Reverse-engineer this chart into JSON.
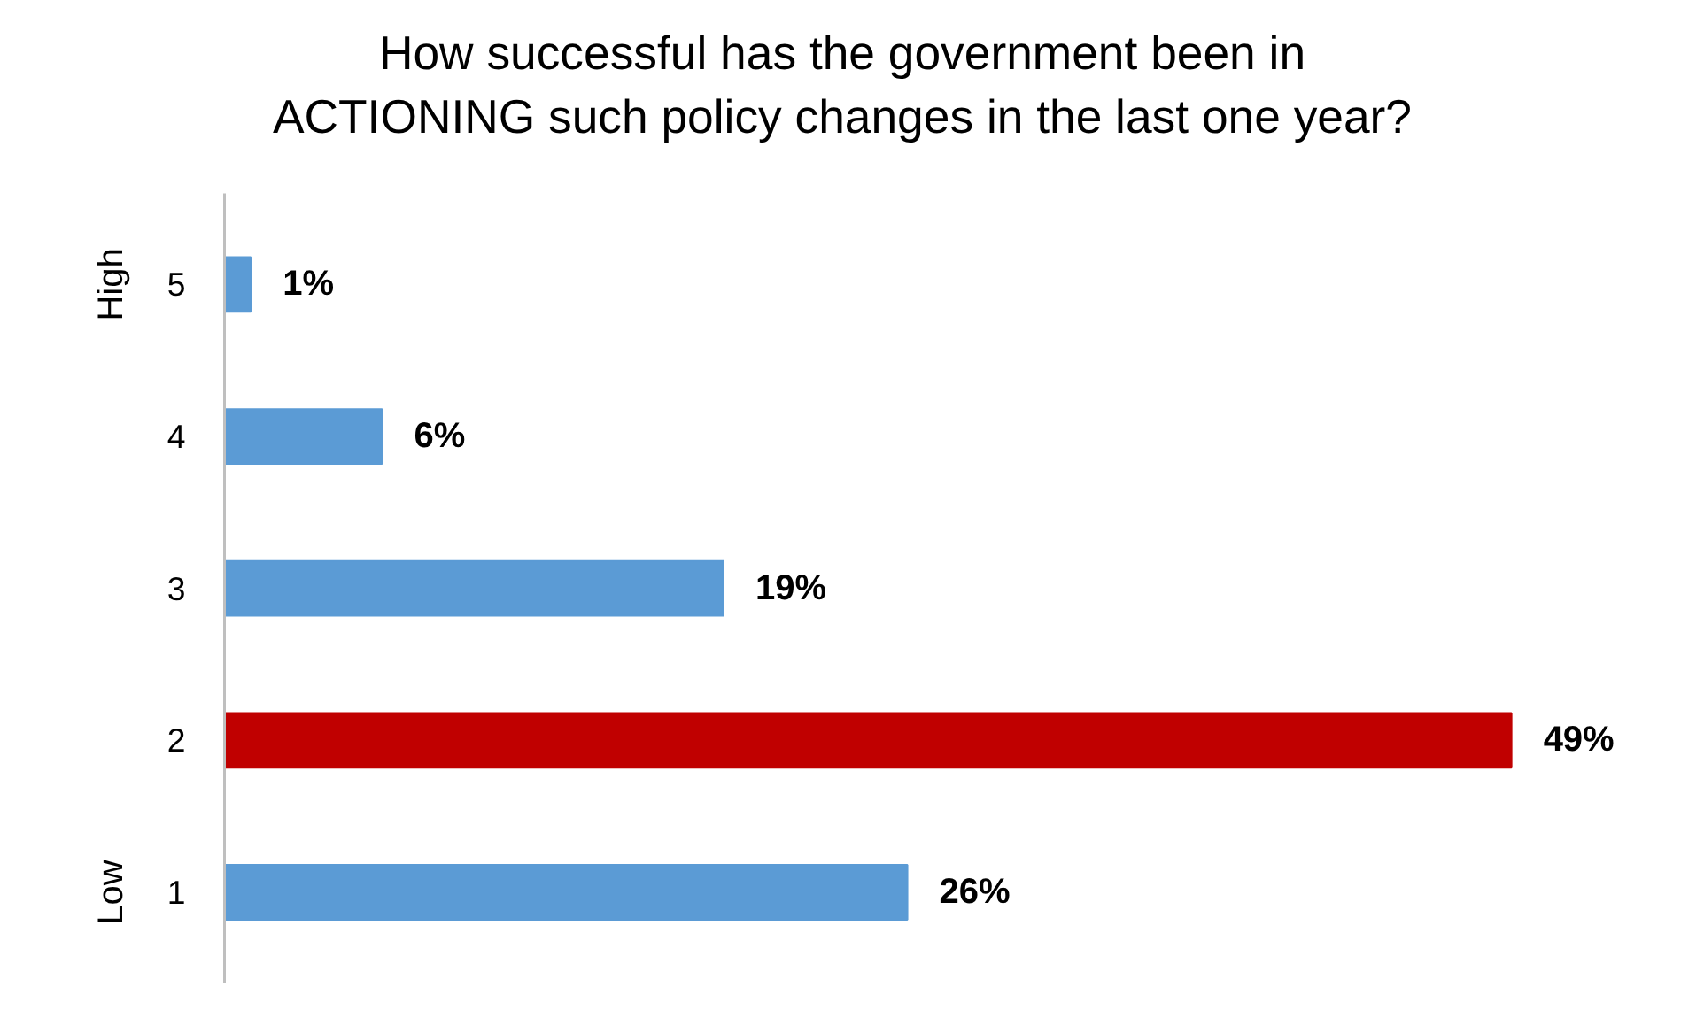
{
  "chart_data": {
    "type": "bar",
    "orientation": "horizontal",
    "title": "How successful has the government been in\nACTIONING such policy changes in the last one year?",
    "categories": [
      "5",
      "4",
      "3",
      "2",
      "1"
    ],
    "values": [
      1,
      6,
      19,
      49,
      26
    ],
    "colors": [
      "#5b9bd5",
      "#5b9bd5",
      "#5b9bd5",
      "#c00000",
      "#5b9bd5"
    ],
    "value_labels": [
      "1%",
      "6%",
      "19%",
      "49%",
      "26%"
    ],
    "tick_labels": "y",
    "grid": false,
    "annotations": [
      "High",
      "Low"
    ]
  }
}
